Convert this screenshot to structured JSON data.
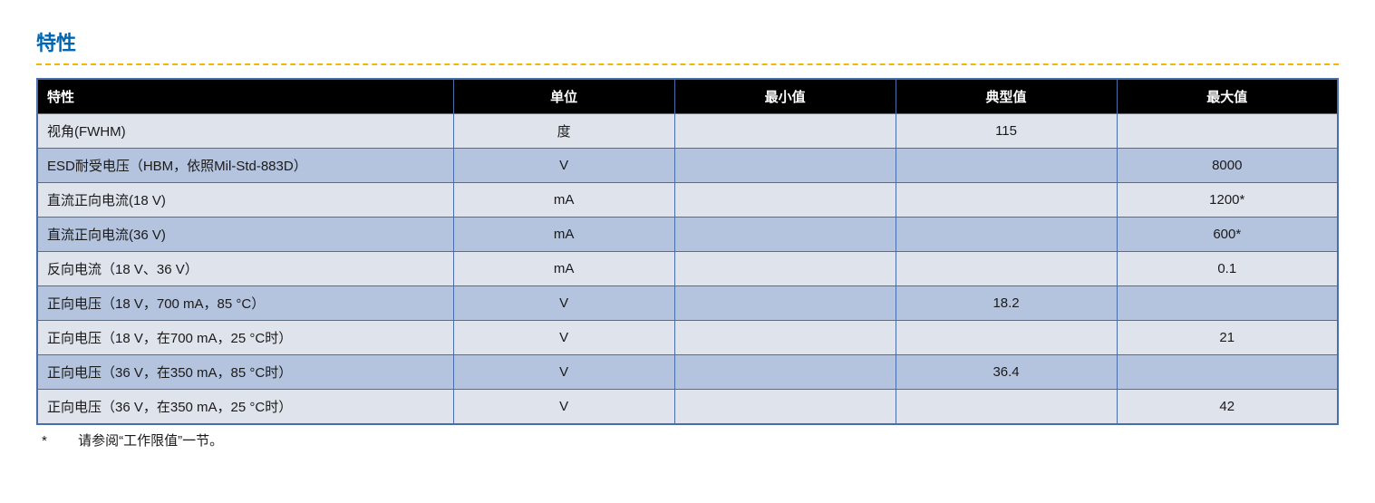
{
  "section_title": "特性",
  "table": {
    "columns": [
      "特性",
      "单位",
      "最小值",
      "典型值",
      "最大值"
    ],
    "rows": [
      [
        "视角(FWHM)",
        "度",
        "",
        "115",
        ""
      ],
      [
        "ESD耐受电压（HBM，依照Mil-Std-883D）",
        "V",
        "",
        "",
        "8000"
      ],
      [
        "直流正向电流(18 V)",
        "mA",
        "",
        "",
        "1200*"
      ],
      [
        "直流正向电流(36 V)",
        "mA",
        "",
        "",
        "600*"
      ],
      [
        "反向电流（18 V、36 V）",
        "mA",
        "",
        "",
        "0.1"
      ],
      [
        "正向电压（18 V，700 mA，85 °C）",
        "V",
        "",
        "18.2",
        ""
      ],
      [
        "正向电压（18 V，在700 mA，25 °C时）",
        "V",
        "",
        "",
        "21"
      ],
      [
        "正向电压（36 V，在350 mA，85 °C时）",
        "V",
        "",
        "36.4",
        ""
      ],
      [
        "正向电压（36 V，在350 mA，25 °C时）",
        "V",
        "",
        "",
        "42"
      ]
    ],
    "column_widths_pct": [
      32,
      17,
      17,
      17,
      17
    ],
    "header_bg": "#000000",
    "header_fg": "#ffffff",
    "row_odd_bg": "#dfe3ec",
    "row_even_bg": "#b4c4de",
    "border_color": "#4a6ea9",
    "font_size_pt": 11
  },
  "footnote": {
    "marker": "*",
    "text": "请参阅“工作限值”一节。"
  },
  "colors": {
    "title": "#0066b3",
    "dashed_rule": "#f5b800",
    "text": "#1a1a1a",
    "background": "#ffffff"
  }
}
